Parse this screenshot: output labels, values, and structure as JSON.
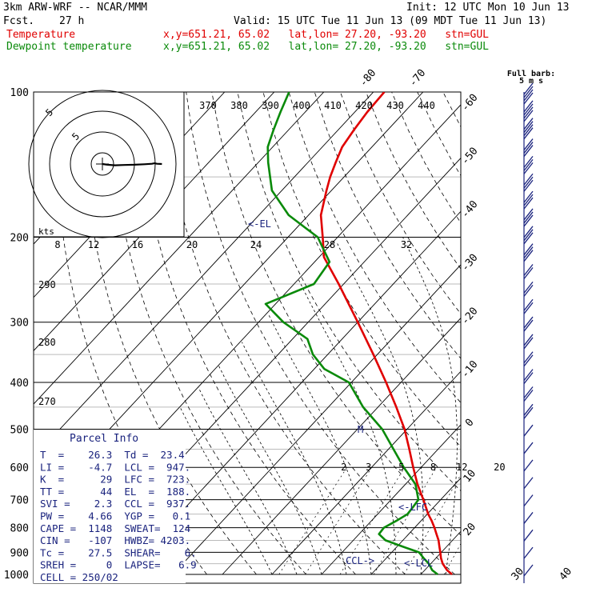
{
  "header": {
    "model": "3km ARW-WRF -- NCAR/MMM",
    "init": "Init: 12 UTC Mon 10 Jun 13",
    "fcst_label": "Fcst.",
    "fcst_value": "27 h",
    "valid": "Valid: 15 UTC Tue 11 Jun 13 (09 MDT Tue 11 Jun 13)",
    "temp_legend": "Temperature",
    "temp_info": "x,y=651.21, 65.02   lat,lon= 27.20, -93.20   stn=GUL",
    "dew_legend": "Dewpoint temperature",
    "dew_info": "x,y=651.21, 65.02   lat,lon= 27.20, -93.20   stn=GUL"
  },
  "barb_label": "Full barb:",
  "barb_unit": "5 m s",
  "parcel": {
    "title": "Parcel Info",
    "rows": [
      "T  =    26.3  Td =  23.4",
      "LI =    -4.7  LCL =  947.",
      "K  =      29  LFC =  723.",
      "TT =      44  EL  =  188.",
      "SVI =    2.3  CCL =  937.",
      "PW =    4.66  YGP =   0.1",
      "CAPE =  1148  SWEAT=  124",
      "CIN =   -107  HWBZ= 4203.",
      "Tc =    27.5  SHEAR=    6.",
      "SREH =     0  LAPSE=   6.9",
      "CELL = 250/02"
    ]
  },
  "hodograph": {
    "ring_labels": [
      "5",
      "5"
    ],
    "kts_label": "kts",
    "u_kts": [
      0,
      2,
      5,
      9,
      13,
      17,
      20,
      21,
      22,
      24
    ],
    "v_kts": [
      0,
      0.3,
      0.5,
      0.4,
      0.3,
      0.1,
      -0.1,
      -0.3,
      -0.1,
      0
    ]
  },
  "chart_data": {
    "type": "line",
    "title": "",
    "pressure_labels": [
      "100",
      "200",
      "300",
      "400",
      "500",
      "600",
      "700",
      "800",
      "900",
      "1000"
    ],
    "pressure_levels": [
      100,
      200,
      300,
      400,
      500,
      600,
      700,
      800,
      900,
      1000
    ],
    "isotherm_labels": [
      "-80",
      "-70",
      "-60",
      "-50",
      "-40",
      "-30",
      "-20",
      "-10",
      "0",
      "10",
      "20",
      "30",
      "40"
    ],
    "theta_labels": [
      "370",
      "380",
      "390",
      "400",
      "410",
      "420",
      "430",
      "440"
    ],
    "theta_e_labels": [
      "8",
      "12",
      "16",
      "20",
      "24",
      "28",
      "32"
    ],
    "theta_e_side_labels": [
      "290",
      "280",
      "270"
    ],
    "mixing_ratio_labels": [
      "2",
      "3",
      "5",
      "8",
      "12",
      "20"
    ],
    "annotations": [
      "<-EL",
      "<-LFC",
      "<-LCL",
      "CCL->"
    ],
    "series": [
      {
        "name": "Temperature",
        "color": "#e00000",
        "pressure": [
          1000,
          980,
          950,
          925,
          900,
          875,
          850,
          825,
          800,
          775,
          750,
          700,
          650,
          600,
          550,
          500,
          450,
          400,
          350,
          300,
          250,
          220,
          200,
          180,
          160,
          150,
          140,
          130,
          120,
          110,
          100
        ],
        "temperature": [
          26.3,
          24.5,
          22.4,
          21.0,
          19.8,
          18.5,
          17.2,
          15.6,
          14.0,
          12.2,
          10.2,
          6.5,
          2.4,
          -1.6,
          -5.8,
          -10.5,
          -16.3,
          -23.0,
          -30.8,
          -40.0,
          -51.0,
          -59.0,
          -63.0,
          -67.5,
          -71.0,
          -72.8,
          -74.4,
          -76.0,
          -76.8,
          -77.5,
          -77.8
        ]
      },
      {
        "name": "Dewpoint temperature",
        "color": "#0a8a0a",
        "pressure": [
          1000,
          980,
          950,
          925,
          900,
          875,
          850,
          825,
          800,
          775,
          750,
          725,
          700,
          650,
          600,
          550,
          500,
          450,
          400,
          375,
          350,
          325,
          300,
          275,
          250,
          225,
          200,
          180,
          160,
          140,
          130,
          120,
          110,
          100
        ],
        "temperature": [
          23.4,
          21.5,
          19.6,
          17.5,
          15.5,
          11.0,
          6.5,
          4.0,
          3.8,
          5.0,
          6.0,
          5.8,
          5.5,
          2.0,
          -3.5,
          -9.0,
          -15.0,
          -23.0,
          -30.5,
          -38.0,
          -43.0,
          -47.0,
          -55.0,
          -62.0,
          -56.0,
          -57.0,
          -64.0,
          -74.0,
          -82.0,
          -88.0,
          -91.0,
          -93.0,
          -95.0,
          -97.0
        ]
      }
    ],
    "wind_barbs_ms": [
      20,
      20,
      20,
      15,
      15,
      15,
      15,
      15,
      15,
      15,
      10,
      10,
      10,
      10,
      10,
      10,
      10,
      10,
      10,
      5,
      5,
      5,
      5,
      5,
      5,
      5,
      5,
      5
    ],
    "grid": true
  }
}
